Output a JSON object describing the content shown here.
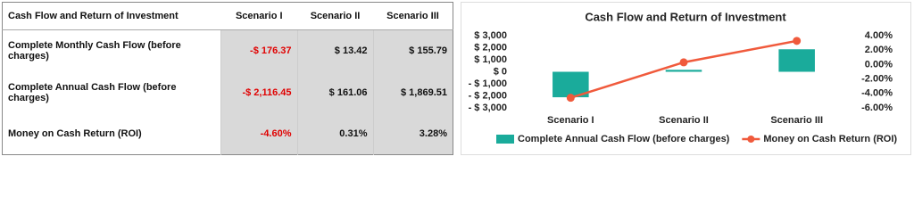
{
  "table": {
    "header": [
      "Cash Flow and Return of Investment",
      "Scenario I",
      "Scenario II",
      "Scenario III"
    ],
    "rows": [
      [
        "Complete Monthly Cash Flow (before charges)",
        "-$ 176.37",
        "$ 13.42",
        "$ 155.79"
      ],
      [
        "Complete Annual Cash Flow (before charges)",
        "-$ 2,116.45",
        "$ 161.06",
        "$ 1,869.51"
      ],
      [
        "Money on Cash Return (ROI)",
        "-4.60%",
        "0.31%",
        "3.28%"
      ]
    ]
  },
  "chart_data": {
    "type": "bar-line",
    "title": "Cash Flow and Return of Investment",
    "categories": [
      "Scenario I",
      "Scenario II",
      "Scenario III"
    ],
    "series": [
      {
        "name": "Complete Annual Cash Flow (before charges)",
        "type": "bar",
        "color": "#1aab9b",
        "values": [
          -2116.45,
          161.06,
          1869.51
        ]
      },
      {
        "name": "Money on Cash Return (ROI)",
        "type": "line",
        "axis": "y2",
        "color": "#f05a3c",
        "values": [
          -4.6,
          0.31,
          3.28
        ]
      }
    ],
    "ylim": [
      -3000,
      3000
    ],
    "yticks": [
      {
        "value": 3000,
        "label": "$ 3,000"
      },
      {
        "value": 2000,
        "label": "$ 2,000"
      },
      {
        "value": 1000,
        "label": "$ 1,000"
      },
      {
        "value": 0,
        "label": "$ 0"
      },
      {
        "value": -1000,
        "label": "- $ 1,000"
      },
      {
        "value": -2000,
        "label": "- $ 2,000"
      },
      {
        "value": -3000,
        "label": "- $ 3,000"
      }
    ],
    "y2lim": [
      -6,
      4
    ],
    "y2ticks": [
      {
        "value": 4,
        "label": "4.00%"
      },
      {
        "value": 2,
        "label": "2.00%"
      },
      {
        "value": 0,
        "label": "0.00%"
      },
      {
        "value": -2,
        "label": "-2.00%"
      },
      {
        "value": -4,
        "label": "-4.00%"
      },
      {
        "value": -6,
        "label": "-6.00%"
      }
    ],
    "grid": false,
    "legend": "bottom"
  }
}
